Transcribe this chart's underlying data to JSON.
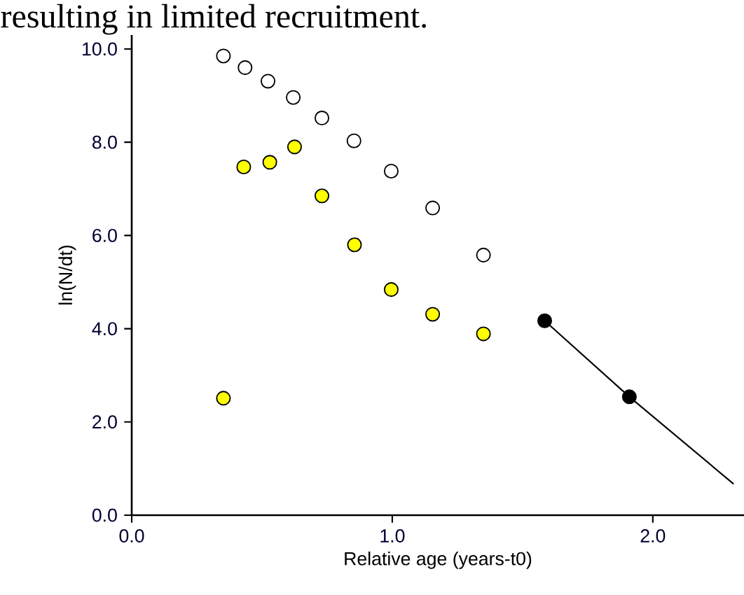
{
  "chart_data": {
    "type": "scatter",
    "annotations": [
      "resulting in limited recruitment."
    ],
    "xlabel": "Relative age (years-t0)",
    "ylabel": "ln(N/dt)",
    "x": [
      0.352,
      0.435,
      0.523,
      0.62,
      0.73,
      0.853,
      0.996,
      1.155,
      1.35
    ],
    "series": [
      {
        "color": "#ffffff",
        "values": [
          9.85,
          9.6,
          9.31,
          8.96,
          8.52,
          8.03,
          7.38,
          6.59,
          5.58
        ]
      },
      {
        "color": "#ffff00",
        "x": [
          0.352,
          0.43,
          0.53,
          0.625,
          0.73,
          0.855,
          0.996,
          1.155,
          1.35
        ],
        "values": [
          2.51,
          7.47,
          7.57,
          7.9,
          6.85,
          5.8,
          4.84,
          4.31,
          3.89
        ]
      },
      {
        "color": "#000000",
        "x": [
          1.585,
          1.91
        ],
        "values": [
          4.17,
          2.54
        ]
      },
      {
        "type": "line",
        "color": "#000000",
        "marker": "none",
        "x": [
          1.585,
          1.91,
          2.31
        ],
        "values": [
          4.17,
          2.54,
          0.67
        ]
      }
    ],
    "xlim": [
      0,
      2.35
    ],
    "ylim": [
      0,
      10.3
    ],
    "xticks": [
      {
        "value": 0,
        "label": "0.0"
      },
      {
        "value": 1,
        "label": "1.0"
      },
      {
        "value": 2,
        "label": "2.0"
      }
    ],
    "yticks": [
      {
        "value": 0,
        "label": "0.0"
      },
      {
        "value": 2,
        "label": "2.0"
      },
      {
        "value": 4,
        "label": "4.0"
      },
      {
        "value": 6,
        "label": "6.0"
      },
      {
        "value": 8,
        "label": "8.0"
      },
      {
        "value": 10,
        "label": "10.0"
      }
    ],
    "legend": false,
    "marker": "circle"
  }
}
